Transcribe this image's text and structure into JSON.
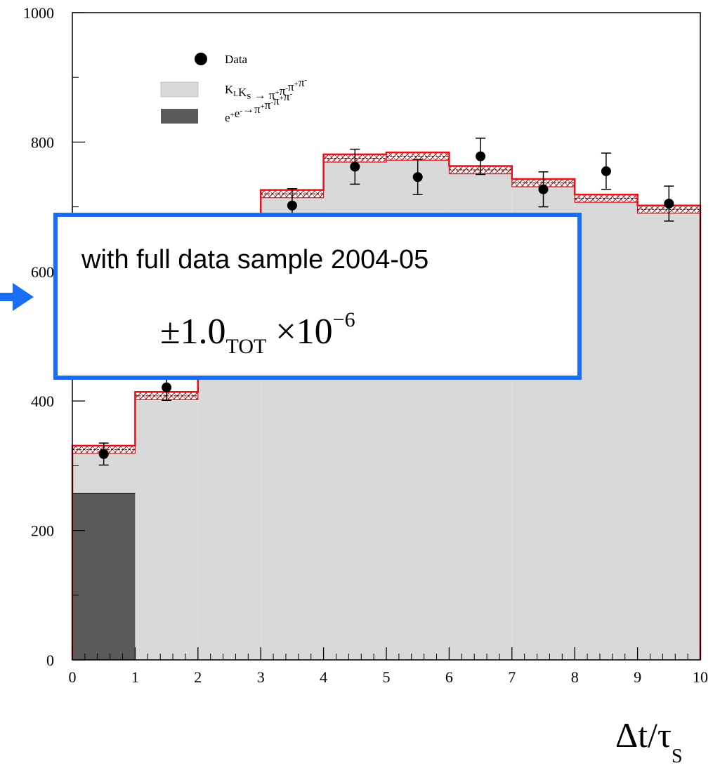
{
  "chart_data": {
    "type": "bar",
    "x_edges": [
      0,
      1,
      2,
      3,
      4,
      5,
      6,
      7,
      8,
      9,
      10
    ],
    "x_centers": [
      0.5,
      1.5,
      2.5,
      3.5,
      4.5,
      5.5,
      6.5,
      7.5,
      8.5,
      9.5
    ],
    "xlim": [
      0,
      10
    ],
    "ylim": [
      0,
      1000
    ],
    "x_ticks": [
      "0",
      "1",
      "2",
      "3",
      "4",
      "5",
      "6",
      "7",
      "8",
      "9",
      "10"
    ],
    "y_ticks": [
      "0",
      "200",
      "400",
      "600",
      "800",
      "1000"
    ],
    "xlabel": "Δt/τ",
    "xlabel_sub": "S",
    "series": [
      {
        "name": "Data",
        "type": "points",
        "values": [
          318,
          421,
          null,
          702,
          762,
          746,
          778,
          727,
          755,
          705
        ],
        "errors": [
          17,
          20,
          null,
          26,
          27,
          27,
          28,
          27,
          28,
          27
        ],
        "color": "#000000"
      },
      {
        "name": "K_L K_S → π⁺π⁻π⁺π⁻",
        "type": "histogram-stacked",
        "values": [
          67,
          408,
          470,
          720,
          775,
          778,
          757,
          737,
          713,
          696
        ],
        "color": "#d9d9d9"
      },
      {
        "name": "e⁺e⁻→π⁺π⁻π⁺π⁻",
        "type": "histogram-stacked",
        "values": [
          258,
          0,
          0,
          0,
          0,
          0,
          0,
          0,
          0,
          0
        ],
        "color": "#5a5a5a"
      }
    ],
    "total_band": {
      "values": [
        325,
        408,
        470,
        720,
        775,
        778,
        757,
        737,
        713,
        696
      ],
      "uncertainty": 6,
      "color": "#e8101a"
    },
    "legend": {
      "placement": "top-left inside plot",
      "entries": [
        {
          "label": "Data",
          "marker": "dot"
        },
        {
          "label_parts": [
            "K",
            "L",
            "K",
            "S",
            " → π",
            "+",
            "π",
            "-",
            "π",
            "+",
            "π",
            "-"
          ],
          "marker": "light-box"
        },
        {
          "label_parts": [
            "e",
            "+",
            "e",
            "-",
            "→π",
            "+",
            "π",
            "-",
            "π",
            "+",
            "π",
            "-"
          ],
          "marker": "dark-box"
        }
      ]
    },
    "grid": false
  },
  "callout": {
    "line1": "with full data sample 2004-05",
    "value_prefix": "±1.0",
    "value_sub": "TOT",
    "value_times": " ×10",
    "value_exp": "−6",
    "border_color": "#1a6ef5"
  },
  "arrow_color": "#1a6ef5"
}
